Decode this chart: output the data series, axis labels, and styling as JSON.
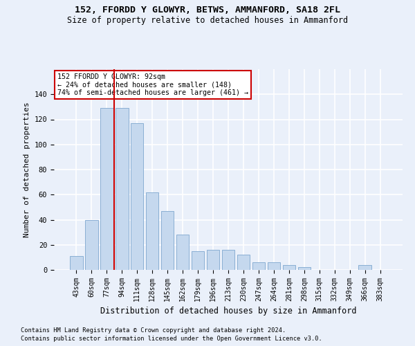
{
  "title": "152, FFORDD Y GLOWYR, BETWS, AMMANFORD, SA18 2FL",
  "subtitle": "Size of property relative to detached houses in Ammanford",
  "xlabel": "Distribution of detached houses by size in Ammanford",
  "ylabel": "Number of detached properties",
  "categories": [
    "43sqm",
    "60sqm",
    "77sqm",
    "94sqm",
    "111sqm",
    "128sqm",
    "145sqm",
    "162sqm",
    "179sqm",
    "196sqm",
    "213sqm",
    "230sqm",
    "247sqm",
    "264sqm",
    "281sqm",
    "298sqm",
    "315sqm",
    "332sqm",
    "349sqm",
    "366sqm",
    "383sqm"
  ],
  "values": [
    11,
    40,
    129,
    129,
    117,
    62,
    47,
    28,
    15,
    16,
    16,
    12,
    6,
    6,
    4,
    2,
    0,
    0,
    0,
    4,
    0
  ],
  "bar_color": "#c5d8ee",
  "bar_edge_color": "#8aafd4",
  "vline_color": "#cc0000",
  "ylim": [
    0,
    160
  ],
  "yticks": [
    0,
    20,
    40,
    60,
    80,
    100,
    120,
    140
  ],
  "annotation_line1": "152 FFORDD Y GLOWYR: 92sqm",
  "annotation_line2": "← 24% of detached houses are smaller (148)",
  "annotation_line3": "74% of semi-detached houses are larger (461) →",
  "annotation_box_color": "#ffffff",
  "annotation_box_edge_color": "#cc0000",
  "footnote1": "Contains HM Land Registry data © Crown copyright and database right 2024.",
  "footnote2": "Contains public sector information licensed under the Open Government Licence v3.0.",
  "background_color": "#eaf0fa",
  "grid_color": "#ffffff",
  "vline_bar_index": 3
}
